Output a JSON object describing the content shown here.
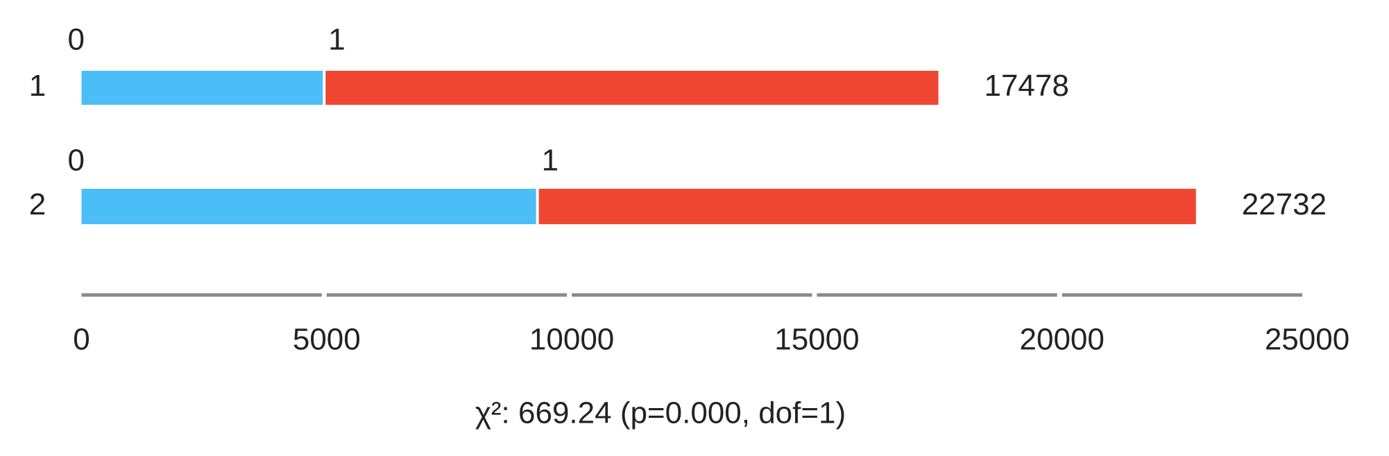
{
  "chart_data": {
    "type": "stacked-bar",
    "footnote": "χ²: 669.24 (p=0.000, dof=1)",
    "categories": [
      "1",
      "2"
    ],
    "series": [
      {
        "name": "0",
        "color": "#4bbef8",
        "values": [
          4950,
          9300
        ]
      },
      {
        "name": "1",
        "color": "#ee4630",
        "values": [
          12528,
          13432
        ]
      }
    ],
    "totals": [
      17478,
      22732
    ],
    "xlim": [
      0,
      25000
    ],
    "xticks": [
      0,
      5000,
      10000,
      15000,
      20000,
      25000
    ]
  }
}
